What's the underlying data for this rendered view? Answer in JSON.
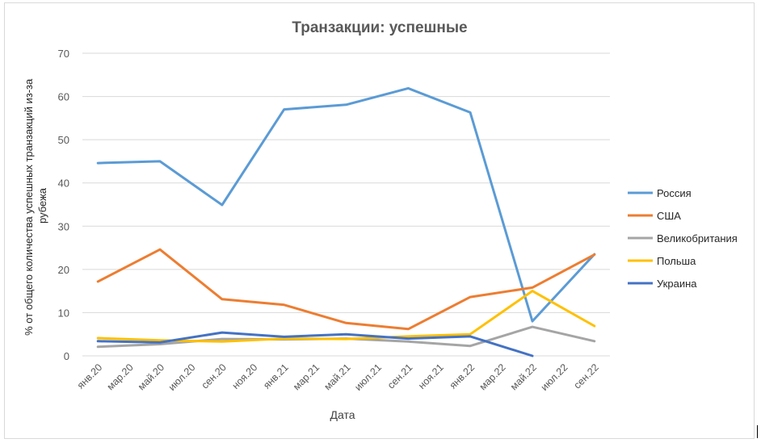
{
  "chart_data": {
    "type": "line",
    "title": "Транзакции: успешные",
    "xlabel": "Дата",
    "ylabel": "% от общего количества успешных транзакций из-за рубежа",
    "ylim": [
      0,
      70
    ],
    "yticks": [
      0,
      10,
      20,
      30,
      40,
      50,
      60,
      70
    ],
    "grid": true,
    "legend_position": "right",
    "categories": [
      "янв.20",
      "мар.20",
      "май.20",
      "июл.20",
      "сен.20",
      "ноя.20",
      "янв.21",
      "мар.21",
      "май.21",
      "июл.21",
      "сен.21",
      "ноя.21",
      "янв.22",
      "мар.22",
      "май.22",
      "июл.22",
      "сен.22"
    ],
    "series": [
      {
        "name": "Россия",
        "color": "#5B9BD5",
        "values": [
          44.6,
          null,
          45.0,
          null,
          34.9,
          null,
          57.0,
          null,
          58.1,
          null,
          61.9,
          null,
          56.3,
          null,
          8.0,
          null,
          23.5
        ]
      },
      {
        "name": "США",
        "color": "#ED7D31",
        "values": [
          17.2,
          null,
          24.6,
          null,
          13.1,
          null,
          11.8,
          null,
          7.6,
          null,
          6.2,
          null,
          13.6,
          null,
          15.8,
          null,
          23.4
        ]
      },
      {
        "name": "Великобритания",
        "color": "#A5A5A5",
        "values": [
          2.1,
          null,
          2.7,
          null,
          3.9,
          null,
          3.8,
          null,
          4.0,
          null,
          3.3,
          null,
          2.3,
          null,
          6.7,
          null,
          3.4
        ]
      },
      {
        "name": "Польша",
        "color": "#FFC000",
        "values": [
          4.1,
          null,
          3.6,
          null,
          3.3,
          null,
          4.0,
          null,
          3.9,
          null,
          4.5,
          null,
          5.0,
          null,
          15.0,
          null,
          6.9
        ]
      },
      {
        "name": "Украина",
        "color": "#4472C4",
        "values": [
          3.4,
          null,
          3.1,
          null,
          5.4,
          null,
          4.4,
          null,
          5.0,
          null,
          4.0,
          null,
          4.5,
          null,
          0,
          null,
          null
        ]
      }
    ]
  }
}
